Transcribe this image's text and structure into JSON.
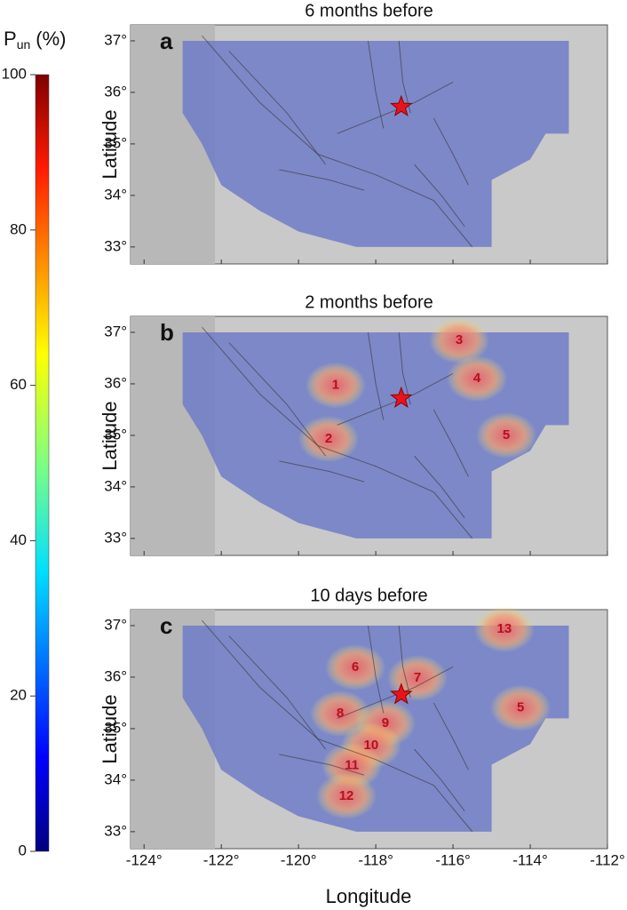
{
  "colorbar": {
    "title": "P",
    "title_sub": "un",
    "title_unit": "(%)",
    "lim": [
      0,
      100
    ],
    "ticks": [
      0,
      20,
      40,
      60,
      80,
      100
    ]
  },
  "xlabel": "Longitude",
  "xlim": [
    -124.35,
    -112
  ],
  "xticks": [
    {
      "value": -124,
      "label": "-124°"
    },
    {
      "value": -122,
      "label": "-122°"
    },
    {
      "value": -120,
      "label": "-120°"
    },
    {
      "value": -118,
      "label": "-118°"
    },
    {
      "value": -116,
      "label": "-116°"
    },
    {
      "value": -114,
      "label": "-114°"
    },
    {
      "value": -112,
      "label": "-112°"
    }
  ],
  "ylim": [
    32.67,
    37.31
  ],
  "yticks": [
    {
      "value": 33,
      "label": "33°"
    },
    {
      "value": 34,
      "label": "34°"
    },
    {
      "value": 35,
      "label": "35°"
    },
    {
      "value": 36,
      "label": "36°"
    },
    {
      "value": 37,
      "label": "37°"
    }
  ],
  "panels": [
    {
      "letter": "a",
      "title": "6 months before",
      "ylabel": "Latitude",
      "star": [
        -117.34,
        35.72
      ],
      "labels": []
    },
    {
      "letter": "b",
      "title": "2 months before",
      "ylabel": "Latitude",
      "star": [
        -117.34,
        35.72
      ],
      "labels": [
        {
          "text": "1",
          "lon": -119.04,
          "lat": 35.97
        },
        {
          "text": "2",
          "lon": -119.22,
          "lat": 34.93
        },
        {
          "text": "3",
          "lon": -115.84,
          "lat": 36.84
        },
        {
          "text": "4",
          "lon": -115.38,
          "lat": 36.1
        },
        {
          "text": "5",
          "lon": -114.62,
          "lat": 35.0
        }
      ]
    },
    {
      "letter": "c",
      "title": "10 days before",
      "ylabel": "Latitude",
      "star": [
        -117.34,
        35.66
      ],
      "labels": [
        {
          "text": "13",
          "lon": -114.67,
          "lat": 36.93
        },
        {
          "text": "6",
          "lon": -118.53,
          "lat": 36.19
        },
        {
          "text": "7",
          "lon": -116.92,
          "lat": 35.98
        },
        {
          "text": "5",
          "lon": -114.25,
          "lat": 35.4
        },
        {
          "text": "8",
          "lon": -118.92,
          "lat": 35.29
        },
        {
          "text": "9",
          "lon": -117.75,
          "lat": 35.1
        },
        {
          "text": "10",
          "lon": -118.12,
          "lat": 34.67
        },
        {
          "text": "11",
          "lon": -118.62,
          "lat": 34.28
        },
        {
          "text": "12",
          "lon": -118.76,
          "lat": 33.69
        }
      ]
    }
  ]
}
